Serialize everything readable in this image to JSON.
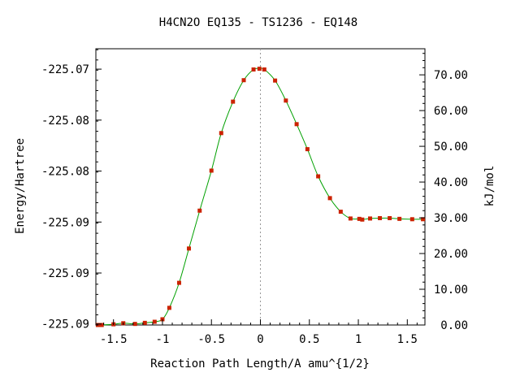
{
  "chart_data": {
    "type": "line",
    "title": "H4CN2O   EQ135 - TS1236 - EQ148",
    "xlabel": "Reaction Path Length/A amu^{1/2}",
    "ylabel_left": "Energy/Hartree",
    "ylabel_right": "kJ/mol",
    "xlim": [
      -1.68,
      1.68
    ],
    "ylim_left": [
      -225.1004,
      -225.0733
    ],
    "ylim_right": [
      0,
      77.3
    ],
    "x_ticks": [
      -1.5,
      -1.0,
      -0.5,
      0.0,
      0.5,
      1.0,
      1.5
    ],
    "x_tick_labels": [
      "-1.5",
      "-1",
      "-0.5",
      "0",
      "0.5",
      "1",
      "1.5"
    ],
    "y_left_ticks": [
      -225.0753,
      -225.0803,
      -225.0853,
      -225.0903,
      -225.0953,
      -225.1003
    ],
    "y_left_tick_labels": [
      "-225.07",
      "-225.08",
      "-225.08",
      "-225.09",
      "-225.09",
      "-225.09"
    ],
    "y_right_ticks": [
      0,
      10,
      20,
      30,
      40,
      50,
      60,
      70
    ],
    "y_right_tick_labels": [
      "0.00",
      "10.00",
      "20.00",
      "30.00",
      "40.00",
      "50.00",
      "60.00",
      "70.00"
    ],
    "ts_marker_x": 0.0,
    "curve_color": "#00a000",
    "point_color": "#cc2200",
    "marker_line_color": "#999999",
    "series": [
      {
        "values_unit": "kJ/mol",
        "x": [
          -1.66,
          -1.64,
          -1.62,
          -1.5,
          -1.4,
          -1.28,
          -1.18,
          -1.08,
          -1.0,
          -0.93,
          -0.83,
          -0.73,
          -0.62,
          -0.5,
          -0.4,
          -0.28,
          -0.17,
          -0.07,
          -0.01,
          0.04,
          0.15,
          0.26,
          0.37,
          0.48,
          0.59,
          0.71,
          0.82,
          0.92,
          1.01,
          1.04,
          1.12,
          1.22,
          1.32,
          1.42,
          1.55,
          1.66
        ],
        "y": [
          0.0,
          0.0,
          0.0,
          0.2,
          0.5,
          0.3,
          0.6,
          0.9,
          1.6,
          4.8,
          11.8,
          21.4,
          32.0,
          43.2,
          53.7,
          62.5,
          68.5,
          71.5,
          71.7,
          71.5,
          68.4,
          62.8,
          56.2,
          49.2,
          41.6,
          35.5,
          31.7,
          29.8,
          29.7,
          29.5,
          29.8,
          29.9,
          29.9,
          29.7,
          29.6,
          29.6
        ]
      }
    ]
  }
}
